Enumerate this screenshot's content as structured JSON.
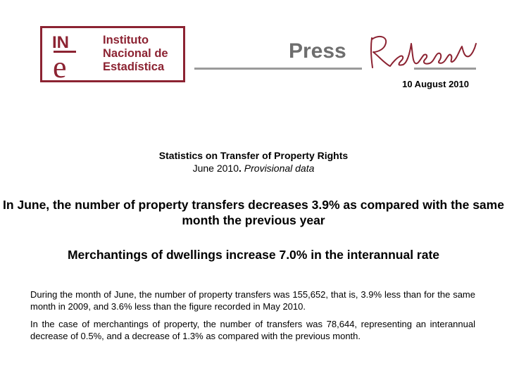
{
  "header": {
    "logo": {
      "mark_letters": "INE",
      "line1": "Instituto",
      "line2": "Nacional de",
      "line3": "Estadística",
      "brand_color": "#8c2332"
    },
    "press_label": "Press",
    "release_label": "Release",
    "date": "10 August 2010"
  },
  "content": {
    "stat_title": "Statistics on Transfer of Property Rights",
    "stat_period": "June 2010",
    "stat_period_sep": ". ",
    "stat_note": "Provisional data",
    "headline": "In June, the number of property transfers decreases 3.9% as compared with the same month the previous year",
    "subheadline": "Merchantings of dwellings increase 7.0% in the interannual rate",
    "paragraphs": [
      "During the month of June, the number of property transfers was 155,652, that is, 3.9% less than for the same month in 2009, and 3.6% less than the figure recorded in May 2010.",
      "In the case of merchantings of property, the number of transfers was 78,644, representing an interannual decrease of 0.5%, and a decrease of 1.3% as compared with the previous month."
    ]
  }
}
